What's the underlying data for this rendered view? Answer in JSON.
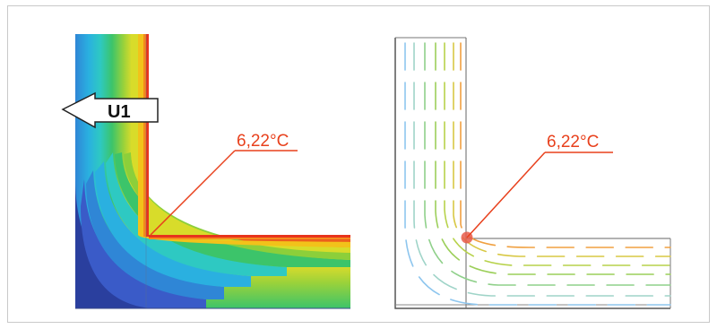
{
  "left_panel": {
    "arrow_label": "U1",
    "annotation": "6,22°C",
    "colors": {
      "annotation_line": "#e8401c",
      "annotation_text": "#e8401c",
      "bands": [
        "#2a3f9e",
        "#3a5bc8",
        "#2f86d6",
        "#2ab0e0",
        "#2ec9c2",
        "#3cc46a",
        "#8ccf3a",
        "#d8dc2a",
        "#f2c21a",
        "#f58a1c",
        "#e8341c"
      ]
    }
  },
  "right_panel": {
    "annotation": "6,22°C",
    "colors": {
      "annotation_line": "#e8401c",
      "marker": "#e85a4a",
      "isolines": [
        "#8ec6ee",
        "#9fd4c8",
        "#8fd08a",
        "#9ccf5a",
        "#c8d24a",
        "#e3b23e",
        "#f0a040"
      ]
    }
  }
}
